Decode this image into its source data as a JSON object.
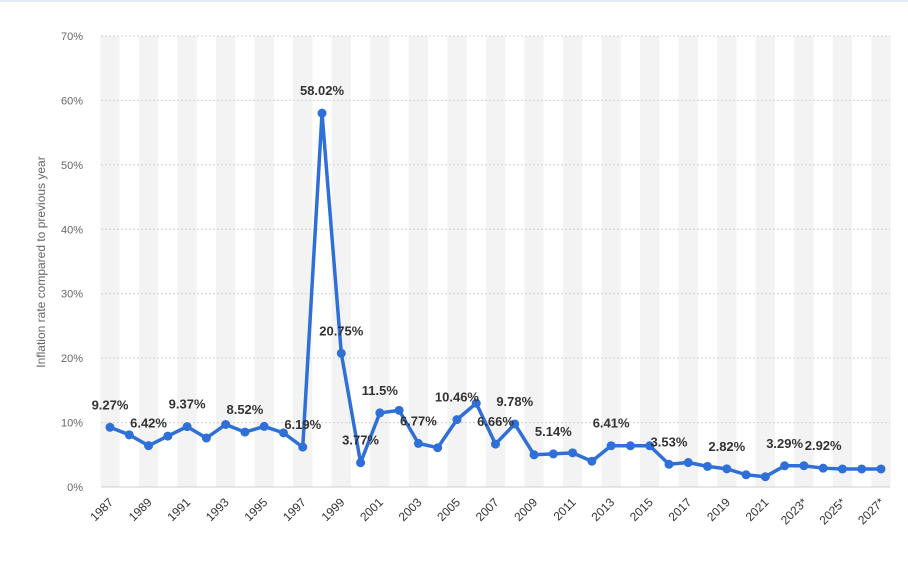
{
  "chart_data": {
    "type": "line",
    "ylabel": "Inflation rate compared to previous year",
    "xlabel": "",
    "ylim": [
      0,
      70
    ],
    "yticks": [
      0,
      10,
      20,
      30,
      40,
      50,
      60,
      70
    ],
    "ytick_labels": [
      "0%",
      "10%",
      "20%",
      "30%",
      "40%",
      "50%",
      "60%",
      "70%"
    ],
    "grid": true,
    "line_color": "#2f6fd8",
    "band_color": "#f3f3f3",
    "categories": [
      "1987",
      "1988",
      "1989",
      "1990",
      "1991",
      "1992",
      "1993",
      "1994",
      "1995",
      "1996",
      "1997",
      "1998",
      "1999",
      "2000",
      "2001",
      "2002",
      "2003",
      "2004",
      "2005",
      "2006",
      "2007",
      "2008",
      "2009",
      "2010",
      "2011",
      "2012",
      "2013",
      "2014",
      "2015",
      "2016",
      "2017",
      "2018",
      "2019",
      "2020",
      "2021",
      "2022",
      "2023*",
      "2024*",
      "2025*",
      "2026*",
      "2027*"
    ],
    "xtick_labels_shown": [
      "1987",
      "1989",
      "1991",
      "1993",
      "1995",
      "1997",
      "1999",
      "2001",
      "2003",
      "2005",
      "2007",
      "2009",
      "2011",
      "2013",
      "2015",
      "2017",
      "2019",
      "2021",
      "2023*",
      "2025*",
      "2027*"
    ],
    "series": [
      {
        "values": [
          9.27,
          8.1,
          6.42,
          7.9,
          9.37,
          7.6,
          9.7,
          8.52,
          9.4,
          8.4,
          6.19,
          58.02,
          20.75,
          3.77,
          11.5,
          11.9,
          6.77,
          6.1,
          10.46,
          13.0,
          6.66,
          9.78,
          5.0,
          5.14,
          5.3,
          4.0,
          6.41,
          6.4,
          6.4,
          3.53,
          3.8,
          3.2,
          2.82,
          1.9,
          1.6,
          3.29,
          3.3,
          2.92,
          2.8,
          2.8,
          2.8
        ]
      }
    ],
    "data_labels": [
      {
        "index": 0,
        "text": "9.27%"
      },
      {
        "index": 2,
        "text": "6.42%"
      },
      {
        "index": 4,
        "text": "9.37%"
      },
      {
        "index": 7,
        "text": "8.52%"
      },
      {
        "index": 10,
        "text": "6.19%"
      },
      {
        "index": 11,
        "text": "58.02%"
      },
      {
        "index": 12,
        "text": "20.75%"
      },
      {
        "index": 13,
        "text": "3.77%"
      },
      {
        "index": 14,
        "text": "11.5%"
      },
      {
        "index": 16,
        "text": "6.77%"
      },
      {
        "index": 18,
        "text": "10.46%"
      },
      {
        "index": 20,
        "text": "6.66%"
      },
      {
        "index": 21,
        "text": "9.78%"
      },
      {
        "index": 23,
        "text": "5.14%"
      },
      {
        "index": 26,
        "text": "6.41%"
      },
      {
        "index": 29,
        "text": "3.53%"
      },
      {
        "index": 32,
        "text": "2.82%"
      },
      {
        "index": 35,
        "text": "3.29%"
      },
      {
        "index": 37,
        "text": "2.92%"
      }
    ]
  }
}
